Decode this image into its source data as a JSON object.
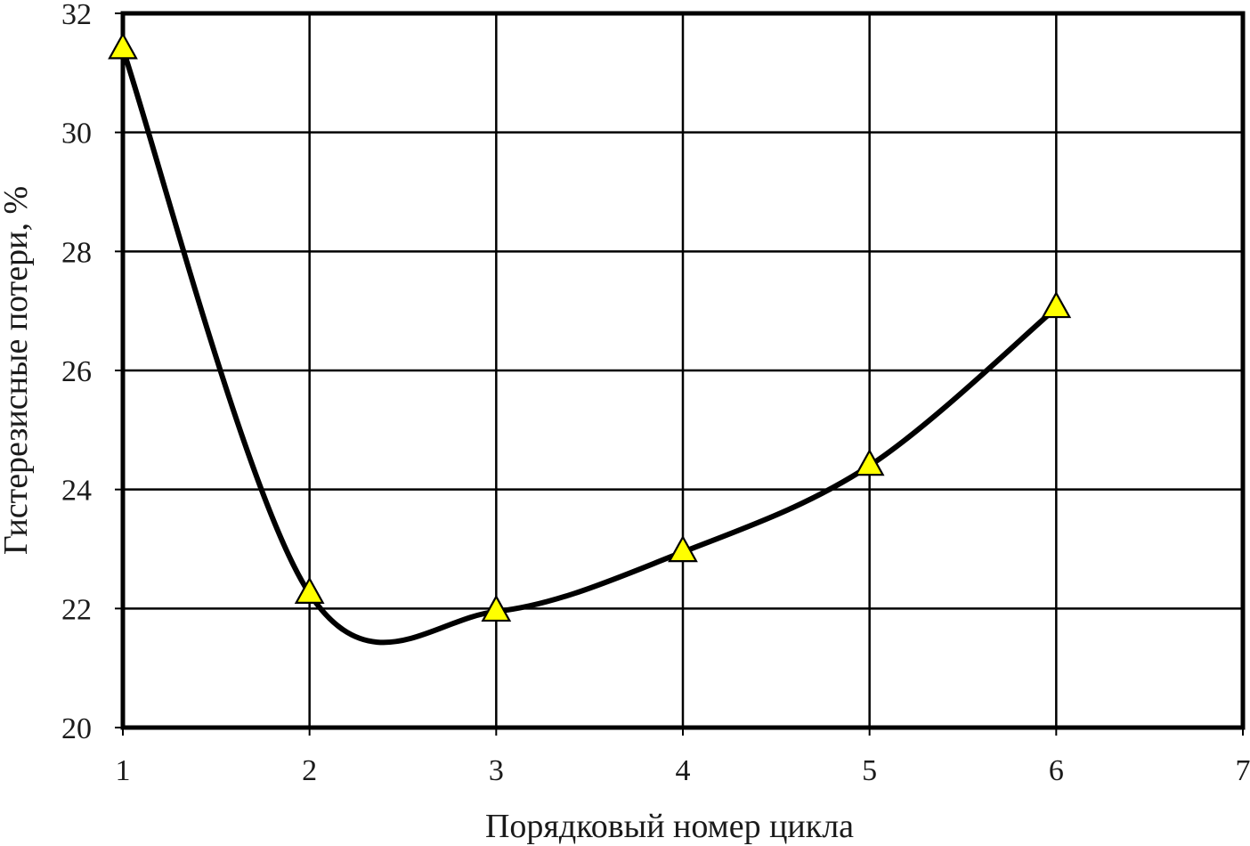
{
  "chart_data": {
    "type": "line",
    "title": "",
    "xlabel": "Порядковый номер цикла",
    "ylabel": "Гистерезисные потери, %",
    "xlim": [
      1,
      7
    ],
    "ylim": [
      20,
      32
    ],
    "x_ticks": [
      "1",
      "2",
      "3",
      "4",
      "5",
      "6",
      "7"
    ],
    "y_ticks": [
      "20",
      "22",
      "24",
      "26",
      "28",
      "30",
      "32"
    ],
    "grid": true,
    "legend": "none",
    "smooth": true,
    "series": [
      {
        "x": [
          1,
          2,
          3,
          4,
          5,
          6
        ],
        "y": [
          31.4,
          22.25,
          21.95,
          22.95,
          24.4,
          27.05
        ],
        "marker": "triangle",
        "line_color": "#000000",
        "marker_fill": "#ffff00",
        "marker_stroke": "#000000"
      }
    ]
  }
}
